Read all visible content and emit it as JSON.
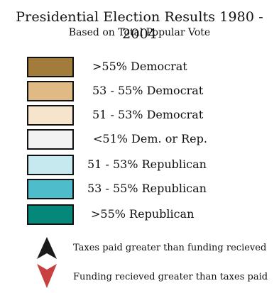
{
  "title": "Presidential Election Results 1980 - 2004",
  "subtitle": "Based on Total Popular Vote",
  "legend": [
    {
      "label": ">55% Democrat",
      "color": "#a37c3b"
    },
    {
      "label": "53 - 55% Democrat",
      "color": "#dfba85"
    },
    {
      "label": "51 - 53% Democrat",
      "color": "#f6e5cc"
    },
    {
      "label": "<51% Dem. or Rep.",
      "color": "#f2f2f2"
    },
    {
      "label": "51 - 53% Republican",
      "color": "#c6e9ef"
    },
    {
      "label": "53 - 55% Republican",
      "color": "#4fbccc"
    },
    {
      "label": ">55% Republican",
      "color": "#058779"
    }
  ],
  "arrows": [
    {
      "label": "Taxes paid greater than funding recieved",
      "icon": "up-arrow-icon",
      "color": "#1a1a1a"
    },
    {
      "label": "Funding recieved greater than taxes paid",
      "icon": "down-arrow-icon",
      "color": "#c84040"
    }
  ]
}
